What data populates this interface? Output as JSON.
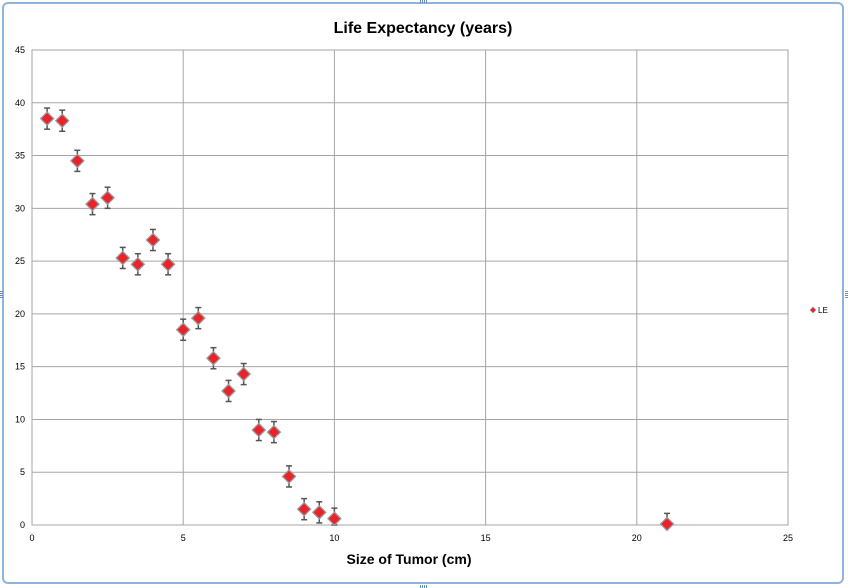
{
  "chart_data": {
    "type": "scatter",
    "title": "Life Expectancy (years)",
    "xlabel": "Size of Tumor (cm)",
    "ylabel": "",
    "xlim": [
      0,
      25
    ],
    "ylim": [
      0,
      45
    ],
    "xticks": [
      0,
      5,
      10,
      15,
      20,
      25
    ],
    "yticks": [
      0,
      5,
      10,
      15,
      20,
      25,
      30,
      35,
      40,
      45
    ],
    "grid": true,
    "legend_position": "right",
    "marker_color": "#e8232a",
    "marker_edge_color": "#9a9a9a",
    "errorbar_color": "#555555",
    "series": [
      {
        "name": "LE",
        "error": 1,
        "points": [
          {
            "x": 0.5,
            "y": 38.5
          },
          {
            "x": 1.0,
            "y": 38.3
          },
          {
            "x": 1.5,
            "y": 34.5
          },
          {
            "x": 2.0,
            "y": 30.4
          },
          {
            "x": 2.5,
            "y": 31.0
          },
          {
            "x": 3.0,
            "y": 25.3
          },
          {
            "x": 3.5,
            "y": 24.7
          },
          {
            "x": 4.0,
            "y": 27.0
          },
          {
            "x": 4.5,
            "y": 24.7
          },
          {
            "x": 5.0,
            "y": 18.5
          },
          {
            "x": 5.5,
            "y": 19.6
          },
          {
            "x": 6.0,
            "y": 15.8
          },
          {
            "x": 6.5,
            "y": 12.7
          },
          {
            "x": 7.0,
            "y": 14.3
          },
          {
            "x": 7.5,
            "y": 9.0
          },
          {
            "x": 8.0,
            "y": 8.8
          },
          {
            "x": 8.5,
            "y": 4.6
          },
          {
            "x": 9.0,
            "y": 1.5
          },
          {
            "x": 9.5,
            "y": 1.2
          },
          {
            "x": 10.0,
            "y": 0.6
          },
          {
            "x": 21.0,
            "y": 0.1
          }
        ]
      }
    ]
  }
}
